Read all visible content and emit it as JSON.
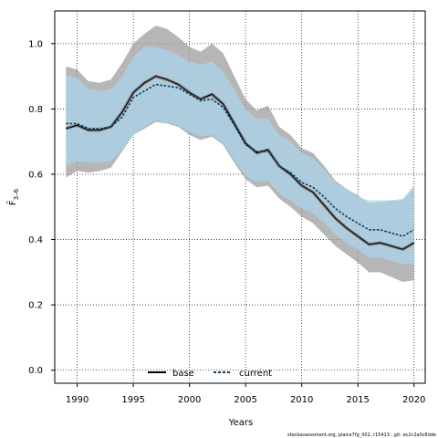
{
  "chart_data": {
    "type": "line",
    "xlabel": "Years",
    "ylabel": "F̄",
    "ylabel_sub": "3–6",
    "xlim": [
      1988,
      2021
    ],
    "ylim": [
      -0.04,
      1.1
    ],
    "x_ticks": [
      1990,
      1995,
      2000,
      2005,
      2010,
      2015,
      2020
    ],
    "y_ticks": [
      "0.0",
      "0.2",
      "0.4",
      "0.6",
      "0.8",
      "1.0"
    ],
    "y_tick_values": [
      0.0,
      0.2,
      0.4,
      0.6,
      0.8,
      1.0
    ],
    "grid": "dotted",
    "legend": {
      "placement": "bottom-center",
      "entries": [
        {
          "name": "base",
          "style": "solid",
          "color": "#000000"
        },
        {
          "name": "current",
          "style": "dashed",
          "color": "#0e3a5c"
        }
      ]
    },
    "years": [
      1989,
      1990,
      1991,
      1992,
      1993,
      1994,
      1995,
      1996,
      1997,
      1998,
      1999,
      2000,
      2001,
      2002,
      2003,
      2004,
      2005,
      2006,
      2007,
      2008,
      2009,
      2010,
      2011,
      2012,
      2013,
      2014,
      2015,
      2016,
      2017,
      2018,
      2019,
      2020
    ],
    "series": [
      {
        "name": "base",
        "color": "#000000",
        "band_color": "#9e9e9e",
        "values": [
          0.74,
          0.75,
          0.735,
          0.735,
          0.745,
          0.79,
          0.85,
          0.88,
          0.9,
          0.89,
          0.875,
          0.85,
          0.83,
          0.845,
          0.815,
          0.755,
          0.695,
          0.665,
          0.675,
          0.625,
          0.6,
          0.565,
          0.545,
          0.505,
          0.465,
          0.435,
          0.41,
          0.385,
          0.39,
          0.38,
          0.37,
          0.39
        ],
        "lower": [
          0.59,
          0.61,
          0.605,
          0.61,
          0.62,
          0.67,
          0.72,
          0.74,
          0.76,
          0.755,
          0.745,
          0.72,
          0.705,
          0.715,
          0.69,
          0.635,
          0.585,
          0.56,
          0.565,
          0.525,
          0.5,
          0.47,
          0.45,
          0.415,
          0.38,
          0.355,
          0.33,
          0.3,
          0.3,
          0.285,
          0.27,
          0.275
        ],
        "upper": [
          0.93,
          0.92,
          0.885,
          0.88,
          0.89,
          0.94,
          1.0,
          1.03,
          1.055,
          1.045,
          1.02,
          0.99,
          0.975,
          1.0,
          0.97,
          0.9,
          0.83,
          0.795,
          0.81,
          0.745,
          0.72,
          0.68,
          0.665,
          0.625,
          0.58,
          0.555,
          0.535,
          0.51,
          0.515,
          0.52,
          0.52,
          0.56
        ]
      },
      {
        "name": "current",
        "color": "#0e3a5c",
        "band_color": "#a9d3ea",
        "values": [
          0.755,
          0.755,
          0.74,
          0.74,
          0.745,
          0.775,
          0.835,
          0.855,
          0.875,
          0.87,
          0.865,
          0.845,
          0.825,
          0.83,
          0.805,
          0.75,
          0.69,
          0.67,
          0.67,
          0.625,
          0.605,
          0.575,
          0.56,
          0.53,
          0.495,
          0.47,
          0.45,
          0.43,
          0.43,
          0.42,
          0.41,
          0.43
        ],
        "lower": [
          0.625,
          0.64,
          0.635,
          0.635,
          0.64,
          0.675,
          0.72,
          0.745,
          0.765,
          0.755,
          0.75,
          0.73,
          0.715,
          0.72,
          0.695,
          0.645,
          0.595,
          0.575,
          0.58,
          0.54,
          0.52,
          0.495,
          0.48,
          0.45,
          0.415,
          0.39,
          0.37,
          0.345,
          0.345,
          0.335,
          0.325,
          0.325
        ],
        "upper": [
          0.905,
          0.895,
          0.86,
          0.855,
          0.86,
          0.9,
          0.96,
          0.99,
          0.99,
          0.98,
          0.965,
          0.945,
          0.935,
          0.945,
          0.915,
          0.86,
          0.8,
          0.77,
          0.77,
          0.72,
          0.7,
          0.665,
          0.65,
          0.615,
          0.575,
          0.555,
          0.53,
          0.52,
          0.52,
          0.52,
          0.525,
          0.565
        ]
      }
    ],
    "footnote": "stockassessment.org, plaice7fg_002, r15413 , git: ec2c2a0c6dde"
  }
}
